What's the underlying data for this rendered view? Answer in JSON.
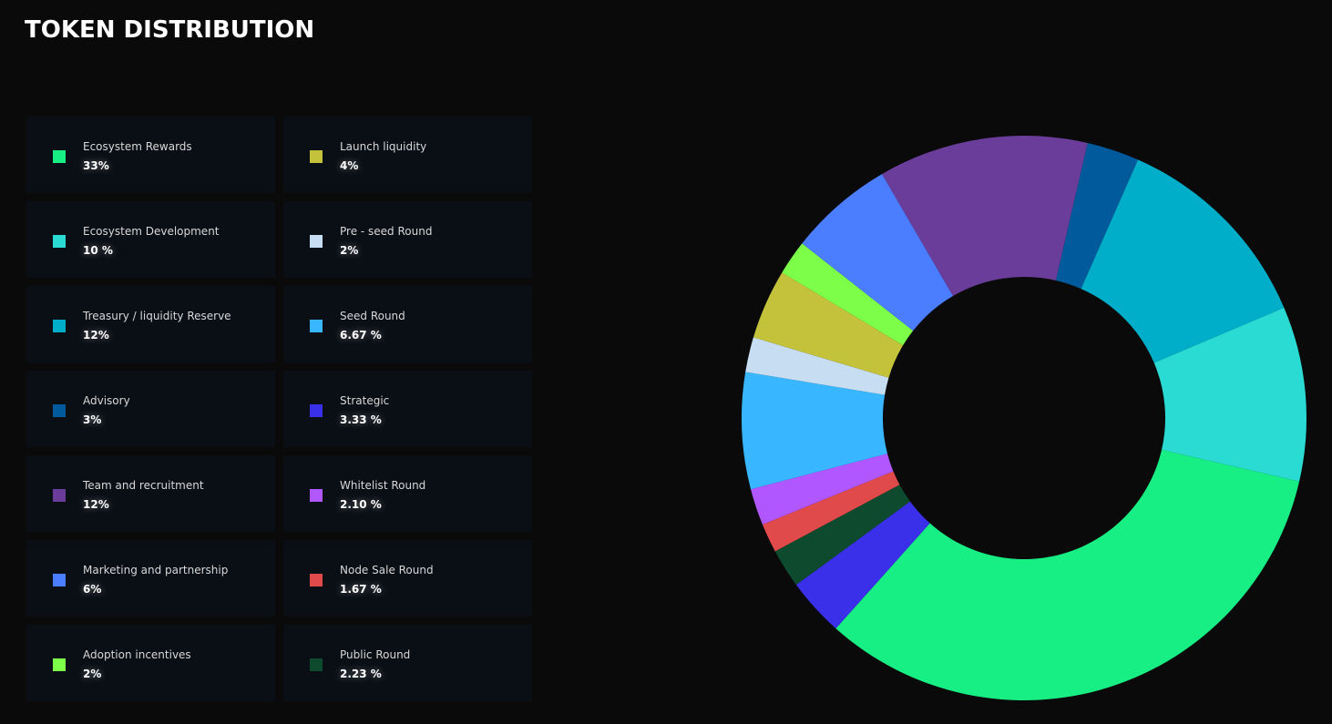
{
  "header": {
    "title": "TOKEN DISTRIBUTION"
  },
  "chart_data": {
    "type": "pie",
    "donut": true,
    "legend_placement": "left",
    "items": [
      {
        "label": "Ecosystem Rewards",
        "value_text": "33%",
        "value": 33,
        "color": "#17ee84"
      },
      {
        "label": "Launch liquidity",
        "value_text": "4%",
        "value": 4,
        "color": "#c3c23a"
      },
      {
        "label": "Ecosystem Development",
        "value_text": "10 %",
        "value": 10,
        "color": "#2adbd4"
      },
      {
        "label": "Pre - seed Round",
        "value_text": "2%",
        "value": 2,
        "color": "#c7def2"
      },
      {
        "label": "Treasury / liquidity Reserve",
        "value_text": "12%",
        "value": 12,
        "color": "#00aec9"
      },
      {
        "label": "Seed Round",
        "value_text": "6.67 %",
        "value": 6.67,
        "color": "#38b6ff"
      },
      {
        "label": "Advisory",
        "value_text": "3%",
        "value": 3,
        "color": "#005a9c"
      },
      {
        "label": "Strategic",
        "value_text": "3.33 %",
        "value": 3.33,
        "color": "#3a30ea"
      },
      {
        "label": "Team and recruitment",
        "value_text": "12%",
        "value": 12,
        "color": "#6a3d9a"
      },
      {
        "label": "Whitelist Round",
        "value_text": "2.10 %",
        "value": 2.1,
        "color": "#b157ff"
      },
      {
        "label": "Marketing and partnership",
        "value_text": "6%",
        "value": 6,
        "color": "#4a7dff"
      },
      {
        "label": "Node Sale Round",
        "value_text": "1.67 %",
        "value": 1.67,
        "color": "#e04a4a"
      },
      {
        "label": "Adoption incentives",
        "value_text": "2%",
        "value": 2,
        "color": "#7dff4a"
      },
      {
        "label": "Public Round",
        "value_text": "2.23 %",
        "value": 2.23,
        "color": "#0d4a2e"
      }
    ],
    "slice_order_clockwise": [
      "Advisory",
      "Treasury / liquidity Reserve",
      "Ecosystem Development",
      "Ecosystem Rewards",
      "Strategic",
      "Public Round",
      "Node Sale Round",
      "Whitelist Round",
      "Seed Round",
      "Pre - seed Round",
      "Launch liquidity",
      "Adoption incentives",
      "Marketing and partnership",
      "Team and recruitment"
    ]
  }
}
